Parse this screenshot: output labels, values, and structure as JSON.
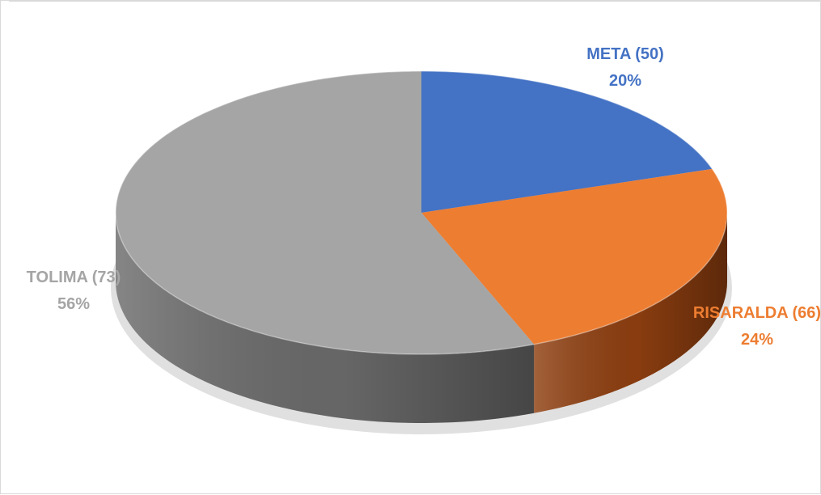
{
  "chart_data": {
    "type": "pie",
    "style": "3d",
    "title": "",
    "series": [
      {
        "slices": [
          {
            "label": "META (50)",
            "percent_label": "20%",
            "value": 20,
            "color": "#4472c4",
            "side_color": "#2f5597"
          },
          {
            "label": "RISARALDA (66)",
            "percent_label": "24%",
            "value": 24,
            "color": "#ed7d31",
            "side_color": "#8f3f10"
          },
          {
            "label": "TOLIMA (73)",
            "percent_label": "56%",
            "value": 56,
            "color": "#a5a5a5",
            "side_color": "#6b6b6b"
          }
        ]
      }
    ],
    "start_angle_deg": -90,
    "direction": "clockwise",
    "legend": "none",
    "label_colors": [
      "#4472c4",
      "#ed7d31",
      "#a5a5a5"
    ]
  }
}
